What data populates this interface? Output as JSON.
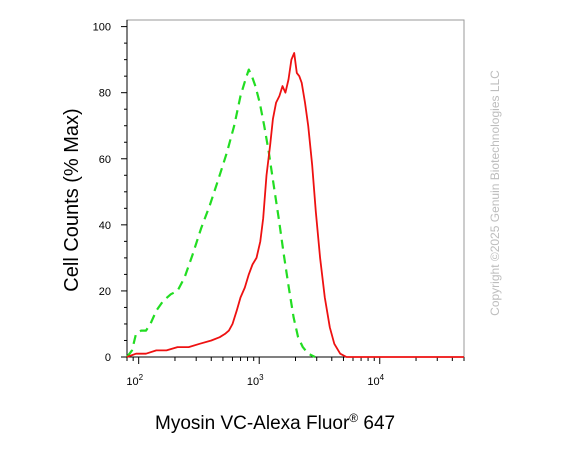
{
  "chart_data": {
    "type": "line",
    "ylabel": "Cell Counts (% Max)",
    "xlabel_main": "Myosin VC-Alexa Fluor",
    "xlabel_sup": "®",
    "xlabel_tail": " 647",
    "copyright": "Copyright ©2025 Genuin Biotechnologies LLC",
    "x_scale": "log",
    "xlim": [
      80,
      50000
    ],
    "ylim": [
      0,
      102
    ],
    "y_ticks": [
      0,
      20,
      40,
      60,
      80,
      100
    ],
    "x_ticks": [
      {
        "value": 100,
        "base": "10",
        "exp": "2"
      },
      {
        "value": 1000,
        "base": "10",
        "exp": "3"
      },
      {
        "value": 10000,
        "base": "10",
        "exp": "4"
      }
    ],
    "series": [
      {
        "color": "#22dd22",
        "style": "dashed",
        "points": [
          [
            80,
            0
          ],
          [
            88,
            2
          ],
          [
            95,
            7
          ],
          [
            105,
            8
          ],
          [
            115,
            8
          ],
          [
            125,
            10
          ],
          [
            140,
            14
          ],
          [
            160,
            17
          ],
          [
            185,
            19
          ],
          [
            210,
            20
          ],
          [
            240,
            24
          ],
          [
            280,
            31
          ],
          [
            330,
            39
          ],
          [
            390,
            46
          ],
          [
            460,
            54
          ],
          [
            540,
            62
          ],
          [
            620,
            70
          ],
          [
            700,
            79
          ],
          [
            770,
            84
          ],
          [
            820,
            87
          ],
          [
            870,
            85
          ],
          [
            930,
            82
          ],
          [
            1010,
            77
          ],
          [
            1100,
            70
          ],
          [
            1200,
            62
          ],
          [
            1320,
            52
          ],
          [
            1450,
            42
          ],
          [
            1600,
            31
          ],
          [
            1760,
            21
          ],
          [
            1930,
            12
          ],
          [
            2100,
            6
          ],
          [
            2300,
            3
          ],
          [
            2550,
            1
          ],
          [
            2900,
            0
          ]
        ]
      },
      {
        "color": "#ee1111",
        "style": "solid",
        "points": [
          [
            80,
            0
          ],
          [
            95,
            1
          ],
          [
            115,
            1
          ],
          [
            140,
            2
          ],
          [
            170,
            2
          ],
          [
            210,
            3
          ],
          [
            260,
            3
          ],
          [
            320,
            4
          ],
          [
            400,
            5
          ],
          [
            470,
            6
          ],
          [
            520,
            7
          ],
          [
            560,
            8
          ],
          [
            600,
            10
          ],
          [
            650,
            14
          ],
          [
            700,
            18
          ],
          [
            760,
            21
          ],
          [
            820,
            25
          ],
          [
            880,
            28
          ],
          [
            950,
            30
          ],
          [
            1020,
            35
          ],
          [
            1080,
            42
          ],
          [
            1150,
            55
          ],
          [
            1230,
            64
          ],
          [
            1300,
            72
          ],
          [
            1380,
            77
          ],
          [
            1470,
            79
          ],
          [
            1560,
            82
          ],
          [
            1650,
            80
          ],
          [
            1750,
            84
          ],
          [
            1850,
            90
          ],
          [
            1950,
            92
          ],
          [
            2050,
            86
          ],
          [
            2150,
            85
          ],
          [
            2250,
            83
          ],
          [
            2400,
            77
          ],
          [
            2550,
            70
          ],
          [
            2750,
            58
          ],
          [
            2950,
            44
          ],
          [
            3200,
            30
          ],
          [
            3500,
            18
          ],
          [
            3850,
            9
          ],
          [
            4200,
            4
          ],
          [
            4700,
            1
          ],
          [
            5300,
            0
          ],
          [
            8000,
            0
          ],
          [
            15000,
            0
          ],
          [
            30000,
            0
          ],
          [
            50000,
            0
          ]
        ]
      }
    ]
  }
}
